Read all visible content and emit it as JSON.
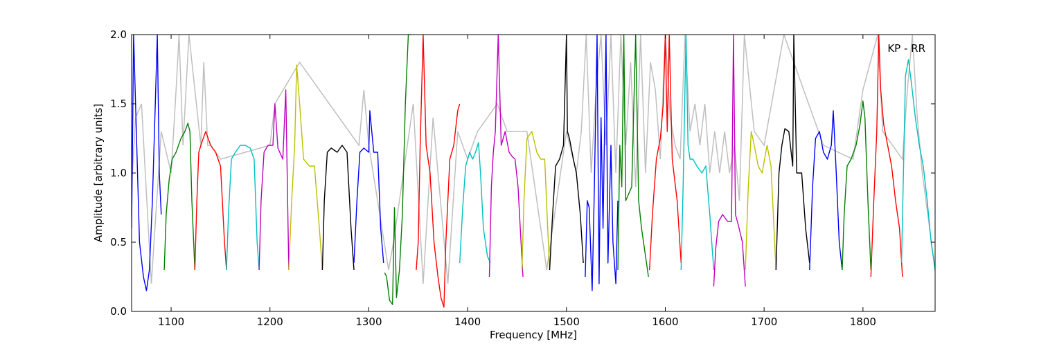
{
  "chart_data": {
    "type": "line",
    "title": "",
    "xlabel": "Frequency [MHz]",
    "ylabel": "Amplitude [arbitrary units]",
    "xlim": [
      1060,
      1873
    ],
    "ylim": [
      0.0,
      2.0
    ],
    "xticks": [
      1100,
      1200,
      1300,
      1400,
      1500,
      1600,
      1700,
      1800
    ],
    "xtick_labels": [
      "1100",
      "1200",
      "1300",
      "1400",
      "1500",
      "1600",
      "1700",
      "1800"
    ],
    "yticks": [
      0.0,
      0.5,
      1.0,
      1.5,
      2.0
    ],
    "ytick_labels": [
      "0.0",
      "0.5",
      "1.0",
      "1.5",
      "2.0"
    ],
    "grid": false,
    "annotation": "KP - RR",
    "background": {
      "color": "#bfbfbf",
      "x": [
        1060,
        1064,
        1070,
        1080,
        1090,
        1100,
        1105,
        1108,
        1112,
        1118,
        1130,
        1133,
        1137,
        1140,
        1150,
        1200,
        1205,
        1230,
        1290,
        1295,
        1300,
        1320,
        1325,
        1345,
        1355,
        1365,
        1380,
        1390,
        1400,
        1410,
        1420,
        1430,
        1440,
        1460,
        1480,
        1500,
        1510,
        1515,
        1520,
        1525,
        1530,
        1535,
        1540,
        1545,
        1550,
        1555,
        1560,
        1565,
        1570,
        1575,
        1580,
        1585,
        1590,
        1595,
        1600,
        1605,
        1610,
        1615,
        1620,
        1625,
        1630,
        1635,
        1640,
        1645,
        1650,
        1655,
        1660,
        1665,
        1670,
        1675,
        1680,
        1690,
        1700,
        1720,
        1760,
        1790,
        1800,
        1815,
        1820,
        1830,
        1840,
        1845,
        1850,
        1855,
        1860,
        1873
      ],
      "y": [
        0.9,
        1.4,
        1.5,
        0.2,
        1.3,
        1.0,
        1.6,
        2.0,
        1.2,
        2.0,
        1.2,
        1.8,
        1.2,
        1.2,
        1.1,
        1.2,
        1.5,
        1.8,
        1.2,
        1.6,
        1.2,
        0.3,
        0.5,
        1.5,
        0.2,
        1.4,
        0.2,
        1.3,
        1.1,
        1.3,
        1.4,
        1.5,
        1.3,
        1.3,
        0.3,
        1.3,
        1.0,
        1.3,
        2.0,
        1.0,
        1.6,
        2.0,
        1.2,
        2.0,
        1.0,
        2.0,
        1.2,
        1.8,
        0.9,
        2.0,
        1.0,
        1.8,
        1.6,
        1.1,
        2.0,
        1.4,
        1.2,
        1.1,
        2.0,
        1.3,
        1.5,
        1.2,
        1.5,
        1.0,
        1.3,
        1.0,
        1.3,
        1.0,
        1.2,
        0.8,
        2.0,
        1.3,
        1.2,
        2.0,
        1.2,
        1.1,
        1.6,
        2.0,
        1.3,
        1.2,
        1.1,
        1.6,
        2.0,
        1.4,
        1.0,
        0.3
      ]
    },
    "series": [
      {
        "color": "#0000ff",
        "x": [
          1060,
          1062,
          1064,
          1068,
          1072,
          1075,
          1078,
          1081,
          1084,
          1086,
          1088,
          1090
        ],
        "y": [
          0.6,
          2.0,
          1.5,
          0.5,
          0.25,
          0.15,
          0.3,
          0.8,
          1.5,
          2.0,
          1.0,
          0.7
        ]
      },
      {
        "color": "#008000",
        "x": [
          1093,
          1095,
          1098,
          1101,
          1105,
          1110,
          1114,
          1117,
          1119,
          1121,
          1124
        ],
        "y": [
          0.3,
          0.7,
          0.95,
          1.1,
          1.15,
          1.25,
          1.3,
          1.36,
          1.3,
          0.8,
          0.3
        ]
      },
      {
        "color": "#ff0000",
        "x": [
          1124,
          1126,
          1128,
          1131,
          1135,
          1140,
          1145,
          1150,
          1154,
          1156
        ],
        "y": [
          0.3,
          0.8,
          1.15,
          1.22,
          1.3,
          1.2,
          1.15,
          1.05,
          0.5,
          0.3
        ]
      },
      {
        "color": "#00bfbf",
        "x": [
          1156,
          1158,
          1161,
          1165,
          1170,
          1175,
          1180,
          1184,
          1187,
          1189
        ],
        "y": [
          0.3,
          0.7,
          1.1,
          1.15,
          1.2,
          1.2,
          1.18,
          1.1,
          0.5,
          0.3
        ]
      },
      {
        "color": "#bf00bf",
        "x": [
          1189,
          1191,
          1194,
          1198,
          1203,
          1205,
          1208,
          1213,
          1216,
          1219
        ],
        "y": [
          0.3,
          0.8,
          1.15,
          1.2,
          1.2,
          1.5,
          1.18,
          1.1,
          1.6,
          0.3
        ]
      },
      {
        "color": "#bfbf00",
        "x": [
          1219,
          1222,
          1225,
          1227,
          1230,
          1234,
          1240,
          1245,
          1250,
          1253
        ],
        "y": [
          0.3,
          0.8,
          1.2,
          1.78,
          1.5,
          1.1,
          1.05,
          1.05,
          0.6,
          0.3
        ]
      },
      {
        "color": "#000000",
        "x": [
          1253,
          1255,
          1258,
          1262,
          1268,
          1273,
          1278,
          1282,
          1285
        ],
        "y": [
          0.3,
          0.8,
          1.15,
          1.18,
          1.15,
          1.2,
          1.15,
          0.6,
          0.3
        ]
      },
      {
        "color": "#0000ff",
        "x": [
          1285,
          1288,
          1291,
          1295,
          1300,
          1301,
          1305,
          1309,
          1312,
          1315
        ],
        "y": [
          0.35,
          0.8,
          1.15,
          1.18,
          1.15,
          1.45,
          1.15,
          1.15,
          0.6,
          0.35
        ]
      },
      {
        "color": "#008000",
        "x": [
          1316,
          1318,
          1321,
          1324,
          1326,
          1328,
          1331,
          1334,
          1337,
          1340,
          1343
        ],
        "y": [
          0.28,
          0.25,
          0.08,
          0.05,
          0.75,
          0.1,
          0.3,
          0.7,
          1.5,
          2.0,
          2.0
        ]
      },
      {
        "color": "#ff0000",
        "x": [
          1348,
          1350,
          1352,
          1355,
          1358,
          1362,
          1366,
          1370,
          1373,
          1376,
          1378,
          1382,
          1386,
          1390,
          1392
        ],
        "y": [
          0.3,
          0.5,
          1.2,
          2.0,
          1.2,
          1.0,
          0.5,
          0.25,
          0.1,
          0.03,
          0.5,
          1.1,
          1.2,
          1.45,
          1.5
        ]
      },
      {
        "color": "#00bfbf",
        "x": [
          1392,
          1395,
          1398,
          1402,
          1405,
          1408,
          1411,
          1413,
          1416,
          1420,
          1423
        ],
        "y": [
          0.35,
          0.75,
          1.05,
          1.15,
          1.1,
          1.15,
          1.22,
          1.0,
          0.6,
          0.4,
          0.35
        ]
      },
      {
        "color": "#bf00bf",
        "x": [
          1422,
          1424,
          1426,
          1428,
          1431,
          1434,
          1438,
          1442,
          1445,
          1448,
          1451,
          1454,
          1456
        ],
        "y": [
          0.25,
          0.9,
          1.15,
          1.3,
          2.0,
          1.2,
          1.3,
          1.15,
          1.12,
          1.1,
          0.9,
          0.5,
          0.25
        ]
      },
      {
        "color": "#bfbf00",
        "x": [
          1455,
          1457,
          1460,
          1465,
          1470,
          1474,
          1478,
          1481,
          1483
        ],
        "y": [
          0.3,
          0.8,
          1.25,
          1.3,
          1.15,
          1.1,
          1.1,
          0.6,
          0.3
        ]
      },
      {
        "color": "#000000",
        "x": [
          1483,
          1486,
          1489,
          1493,
          1497,
          1500,
          1501,
          1503,
          1507,
          1510,
          1514,
          1517
        ],
        "y": [
          0.3,
          0.7,
          1.05,
          1.1,
          1.2,
          2.0,
          1.3,
          1.25,
          1.1,
          1.0,
          0.7,
          0.35
        ]
      },
      {
        "color": "#0000ff",
        "x": [
          1519,
          1521,
          1523,
          1526,
          1528,
          1531,
          1533,
          1535,
          1537,
          1540,
          1542,
          1545,
          1547,
          1550,
          1552
        ],
        "y": [
          0.25,
          0.8,
          0.75,
          0.15,
          0.8,
          2.0,
          0.2,
          1.4,
          0.6,
          2.0,
          0.35,
          1.2,
          0.5,
          0.2,
          0.8
        ]
      },
      {
        "color": "#008000",
        "x": [
          1552,
          1554,
          1556,
          1558,
          1560,
          1563,
          1566,
          1570,
          1573,
          1576,
          1580,
          1583
        ],
        "y": [
          0.3,
          1.2,
          0.9,
          2.0,
          0.8,
          0.85,
          0.9,
          2.0,
          0.8,
          0.6,
          0.4,
          0.25
        ]
      },
      {
        "color": "#ff0000",
        "x": [
          1584,
          1587,
          1591,
          1595,
          1598,
          1600,
          1602,
          1604,
          1607,
          1612,
          1616
        ],
        "y": [
          0.3,
          0.7,
          1.1,
          1.25,
          1.5,
          2.0,
          1.3,
          2.0,
          1.1,
          0.8,
          0.35
        ]
      },
      {
        "color": "#00bfbf",
        "x": [
          1616,
          1618,
          1621,
          1623,
          1625,
          1628,
          1632,
          1637,
          1641,
          1645,
          1649
        ],
        "y": [
          0.3,
          0.9,
          2.0,
          1.2,
          1.1,
          1.1,
          1.05,
          1.0,
          1.05,
          0.7,
          0.3
        ]
      },
      {
        "color": "#bf00bf",
        "x": [
          1649,
          1651,
          1654,
          1658,
          1663,
          1667,
          1669,
          1671,
          1674,
          1678,
          1681
        ],
        "y": [
          0.18,
          0.45,
          0.65,
          0.7,
          0.65,
          0.65,
          2.0,
          0.7,
          0.62,
          0.5,
          0.18
        ]
      },
      {
        "color": "#bfbf00",
        "x": [
          1681,
          1684,
          1687,
          1690,
          1694,
          1698,
          1703,
          1707,
          1710,
          1712
        ],
        "y": [
          0.3,
          0.9,
          1.3,
          1.2,
          1.05,
          1.0,
          1.2,
          1.05,
          0.6,
          0.3
        ]
      },
      {
        "color": "#000000",
        "x": [
          1712,
          1715,
          1718,
          1721,
          1725,
          1729,
          1730,
          1733,
          1738,
          1742,
          1746
        ],
        "y": [
          0.3,
          1.0,
          1.2,
          1.32,
          1.3,
          1.05,
          2.0,
          1.0,
          1.0,
          0.6,
          0.35
        ]
      },
      {
        "color": "#0000ff",
        "x": [
          1746,
          1749,
          1752,
          1756,
          1760,
          1764,
          1768,
          1770,
          1773,
          1776,
          1779
        ],
        "y": [
          0.3,
          0.9,
          1.25,
          1.3,
          1.15,
          1.1,
          1.2,
          1.45,
          1.0,
          0.5,
          0.3
        ]
      },
      {
        "color": "#008000",
        "x": [
          1779,
          1781,
          1784,
          1788,
          1793,
          1797,
          1800,
          1802,
          1805,
          1808
        ],
        "y": [
          0.3,
          0.7,
          1.05,
          1.1,
          1.2,
          1.35,
          1.52,
          1.4,
          0.8,
          0.3
        ]
      },
      {
        "color": "#ff0000",
        "x": [
          1808,
          1811,
          1814,
          1816,
          1818,
          1821,
          1825,
          1829,
          1833,
          1837,
          1840
        ],
        "y": [
          0.25,
          0.8,
          1.3,
          2.0,
          1.6,
          1.35,
          1.2,
          1.05,
          0.8,
          0.6,
          0.25
        ]
      },
      {
        "color": "#00bfbf",
        "x": [
          1839,
          1841,
          1843,
          1846,
          1849,
          1853,
          1857,
          1861,
          1865,
          1869,
          1873
        ],
        "y": [
          0.35,
          1.0,
          1.7,
          1.82,
          1.65,
          1.4,
          1.2,
          1.05,
          0.8,
          0.5,
          0.3
        ]
      }
    ]
  }
}
